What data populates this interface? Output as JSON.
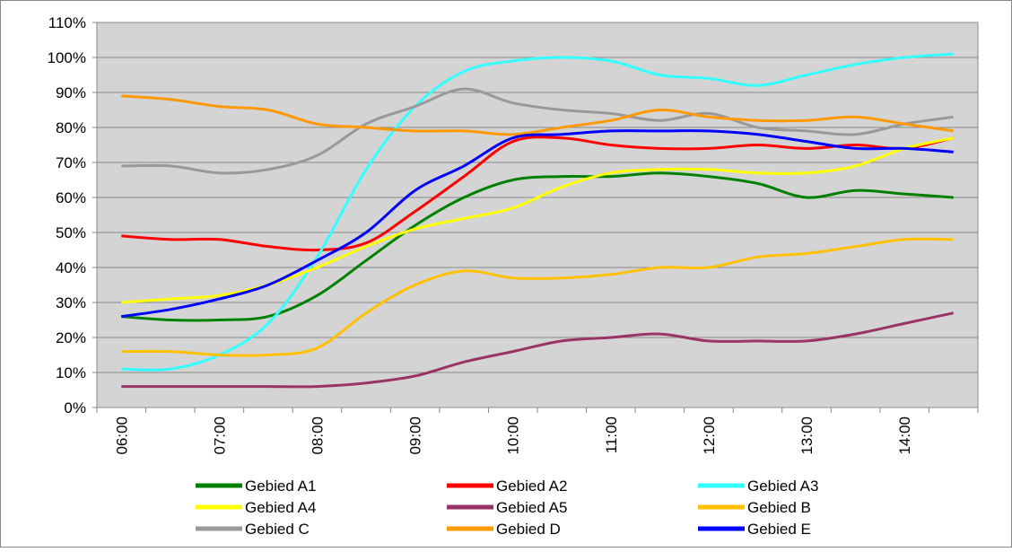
{
  "chart_data": {
    "type": "line",
    "categories": [
      "06:00",
      null,
      "07:00",
      null,
      "08:00",
      null,
      "09:00",
      null,
      "10:00",
      null,
      "11:00",
      null,
      "12:00",
      null,
      "13:00",
      null,
      "14:00",
      null
    ],
    "series": [
      {
        "name": "Gebied A1",
        "color": "#008000",
        "values": [
          26,
          25,
          25,
          26,
          32,
          42,
          52,
          60,
          65,
          66,
          66,
          67,
          66,
          64,
          60,
          62,
          61,
          60
        ]
      },
      {
        "name": "Gebied A2",
        "color": "#ff0000",
        "values": [
          49,
          48,
          48,
          46,
          45,
          47,
          56,
          66,
          76,
          77,
          75,
          74,
          74,
          75,
          74,
          75,
          74,
          77
        ]
      },
      {
        "name": "Gebied A3",
        "color": "#33ffff",
        "values": [
          11,
          11,
          15,
          24,
          43,
          68,
          86,
          96,
          99,
          100,
          99,
          95,
          94,
          92,
          95,
          98,
          100,
          101
        ]
      },
      {
        "name": "Gebied A4",
        "color": "#ffff00",
        "values": [
          30,
          31,
          32,
          35,
          40,
          46,
          51,
          54,
          57,
          63,
          67,
          68,
          68,
          67,
          67,
          69,
          74,
          77
        ]
      },
      {
        "name": "Gebied A5",
        "color": "#993366",
        "values": [
          6,
          6,
          6,
          6,
          6,
          7,
          9,
          13,
          16,
          19,
          20,
          21,
          19,
          19,
          19,
          21,
          24,
          27
        ]
      },
      {
        "name": "Gebied B",
        "color": "#ffc000",
        "values": [
          16,
          16,
          15,
          15,
          17,
          27,
          35,
          39,
          37,
          37,
          38,
          40,
          40,
          43,
          44,
          46,
          48,
          48
        ]
      },
      {
        "name": "Gebied C",
        "color": "#999999",
        "values": [
          69,
          69,
          67,
          68,
          72,
          81,
          86,
          91,
          87,
          85,
          84,
          82,
          84,
          80,
          79,
          78,
          81,
          83
        ]
      },
      {
        "name": "Gebied D",
        "color": "#ff9900",
        "values": [
          89,
          88,
          86,
          85,
          81,
          80,
          79,
          79,
          78,
          80,
          82,
          85,
          83,
          82,
          82,
          83,
          81,
          79
        ]
      },
      {
        "name": "Gebied E",
        "color": "#0000ff",
        "values": [
          26,
          28,
          31,
          35,
          42,
          50,
          62,
          69,
          77,
          78,
          79,
          79,
          79,
          78,
          76,
          74,
          74,
          73
        ]
      }
    ],
    "ylim": [
      0,
      110
    ],
    "yticks": [
      {
        "value": 0,
        "label": "0%"
      },
      {
        "value": 10,
        "label": "10%"
      },
      {
        "value": 20,
        "label": "20%"
      },
      {
        "value": 30,
        "label": "30%"
      },
      {
        "value": 40,
        "label": "40%"
      },
      {
        "value": 50,
        "label": "50%"
      },
      {
        "value": 60,
        "label": "60%"
      },
      {
        "value": 70,
        "label": "70%"
      },
      {
        "value": 80,
        "label": "80%"
      },
      {
        "value": 90,
        "label": "90%"
      },
      {
        "value": 100,
        "label": "100%"
      },
      {
        "value": 110,
        "label": "110%"
      }
    ],
    "grid": true
  }
}
